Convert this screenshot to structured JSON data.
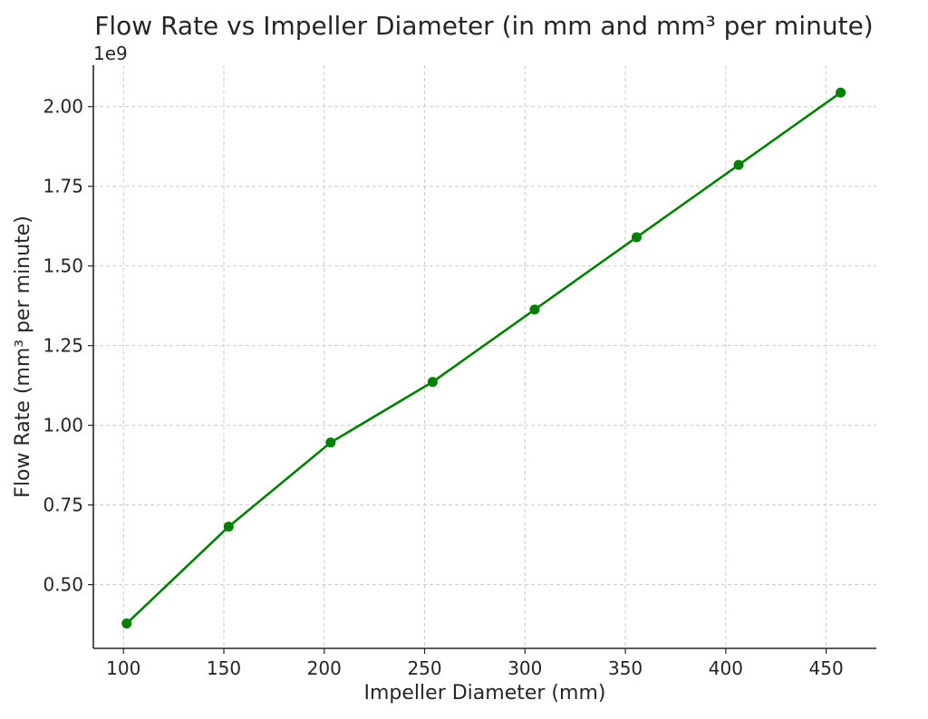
{
  "chart_data": {
    "type": "line",
    "title": "Flow Rate vs Impeller Diameter (in mm and mm³ per minute)",
    "xlabel": "Impeller Diameter (mm)",
    "ylabel": "Flow Rate (mm³ per minute)",
    "y_offset_label": "1e9",
    "xlim": [
      85,
      475
    ],
    "ylim": [
      0.3,
      2.13
    ],
    "x_ticks": [
      100,
      150,
      200,
      250,
      300,
      350,
      400,
      450
    ],
    "x_tick_labels": [
      "100",
      "150",
      "200",
      "250",
      "300",
      "350",
      "400",
      "450"
    ],
    "y_ticks": [
      0.5,
      0.75,
      1.0,
      1.25,
      1.5,
      1.75,
      2.0
    ],
    "y_tick_labels": [
      "0.50",
      "0.75",
      "1.00",
      "1.25",
      "1.50",
      "1.75",
      "2.00"
    ],
    "grid": true,
    "series": [
      {
        "color": "#008000",
        "marker": "circle",
        "x": [
          101.6,
          152.4,
          203.2,
          254,
          304.8,
          355.6,
          406.4,
          457.2
        ],
        "y": [
          0.378,
          0.682,
          0.946,
          1.136,
          1.363,
          1.59,
          1.817,
          2.044
        ]
      }
    ]
  }
}
